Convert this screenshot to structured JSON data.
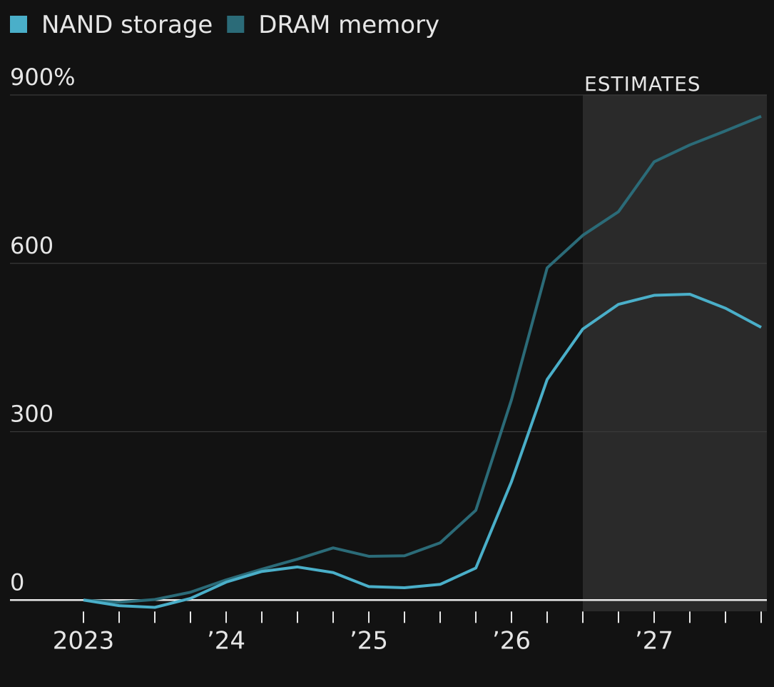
{
  "chart_data": {
    "type": "line",
    "categories": [
      "2023",
      null,
      null,
      null,
      "’24",
      null,
      null,
      null,
      "’25",
      null,
      null,
      null,
      "’26",
      null,
      null,
      null,
      "’27",
      null,
      null,
      null
    ],
    "series": [
      {
        "name": "NAND storage",
        "color": "#4aafc9",
        "values": [
          0,
          -10,
          -13,
          3,
          32,
          51,
          59,
          49,
          24,
          22,
          28,
          57,
          211,
          393,
          483,
          527,
          543,
          545,
          520,
          486
        ]
      },
      {
        "name": "DRAM memory",
        "color": "#2b6b78",
        "values": [
          0,
          -4,
          1,
          14,
          36,
          55,
          73,
          93,
          78,
          79,
          102,
          160,
          357,
          592,
          650,
          692,
          781,
          811,
          836,
          862
        ]
      }
    ],
    "ylim": [
      -20,
      900
    ],
    "yticks": [
      0,
      300,
      600,
      {
        "value": 900,
        "label": "900%"
      }
    ],
    "grid": true,
    "estimates": {
      "label": "ESTIMATES",
      "start": 14
    }
  }
}
